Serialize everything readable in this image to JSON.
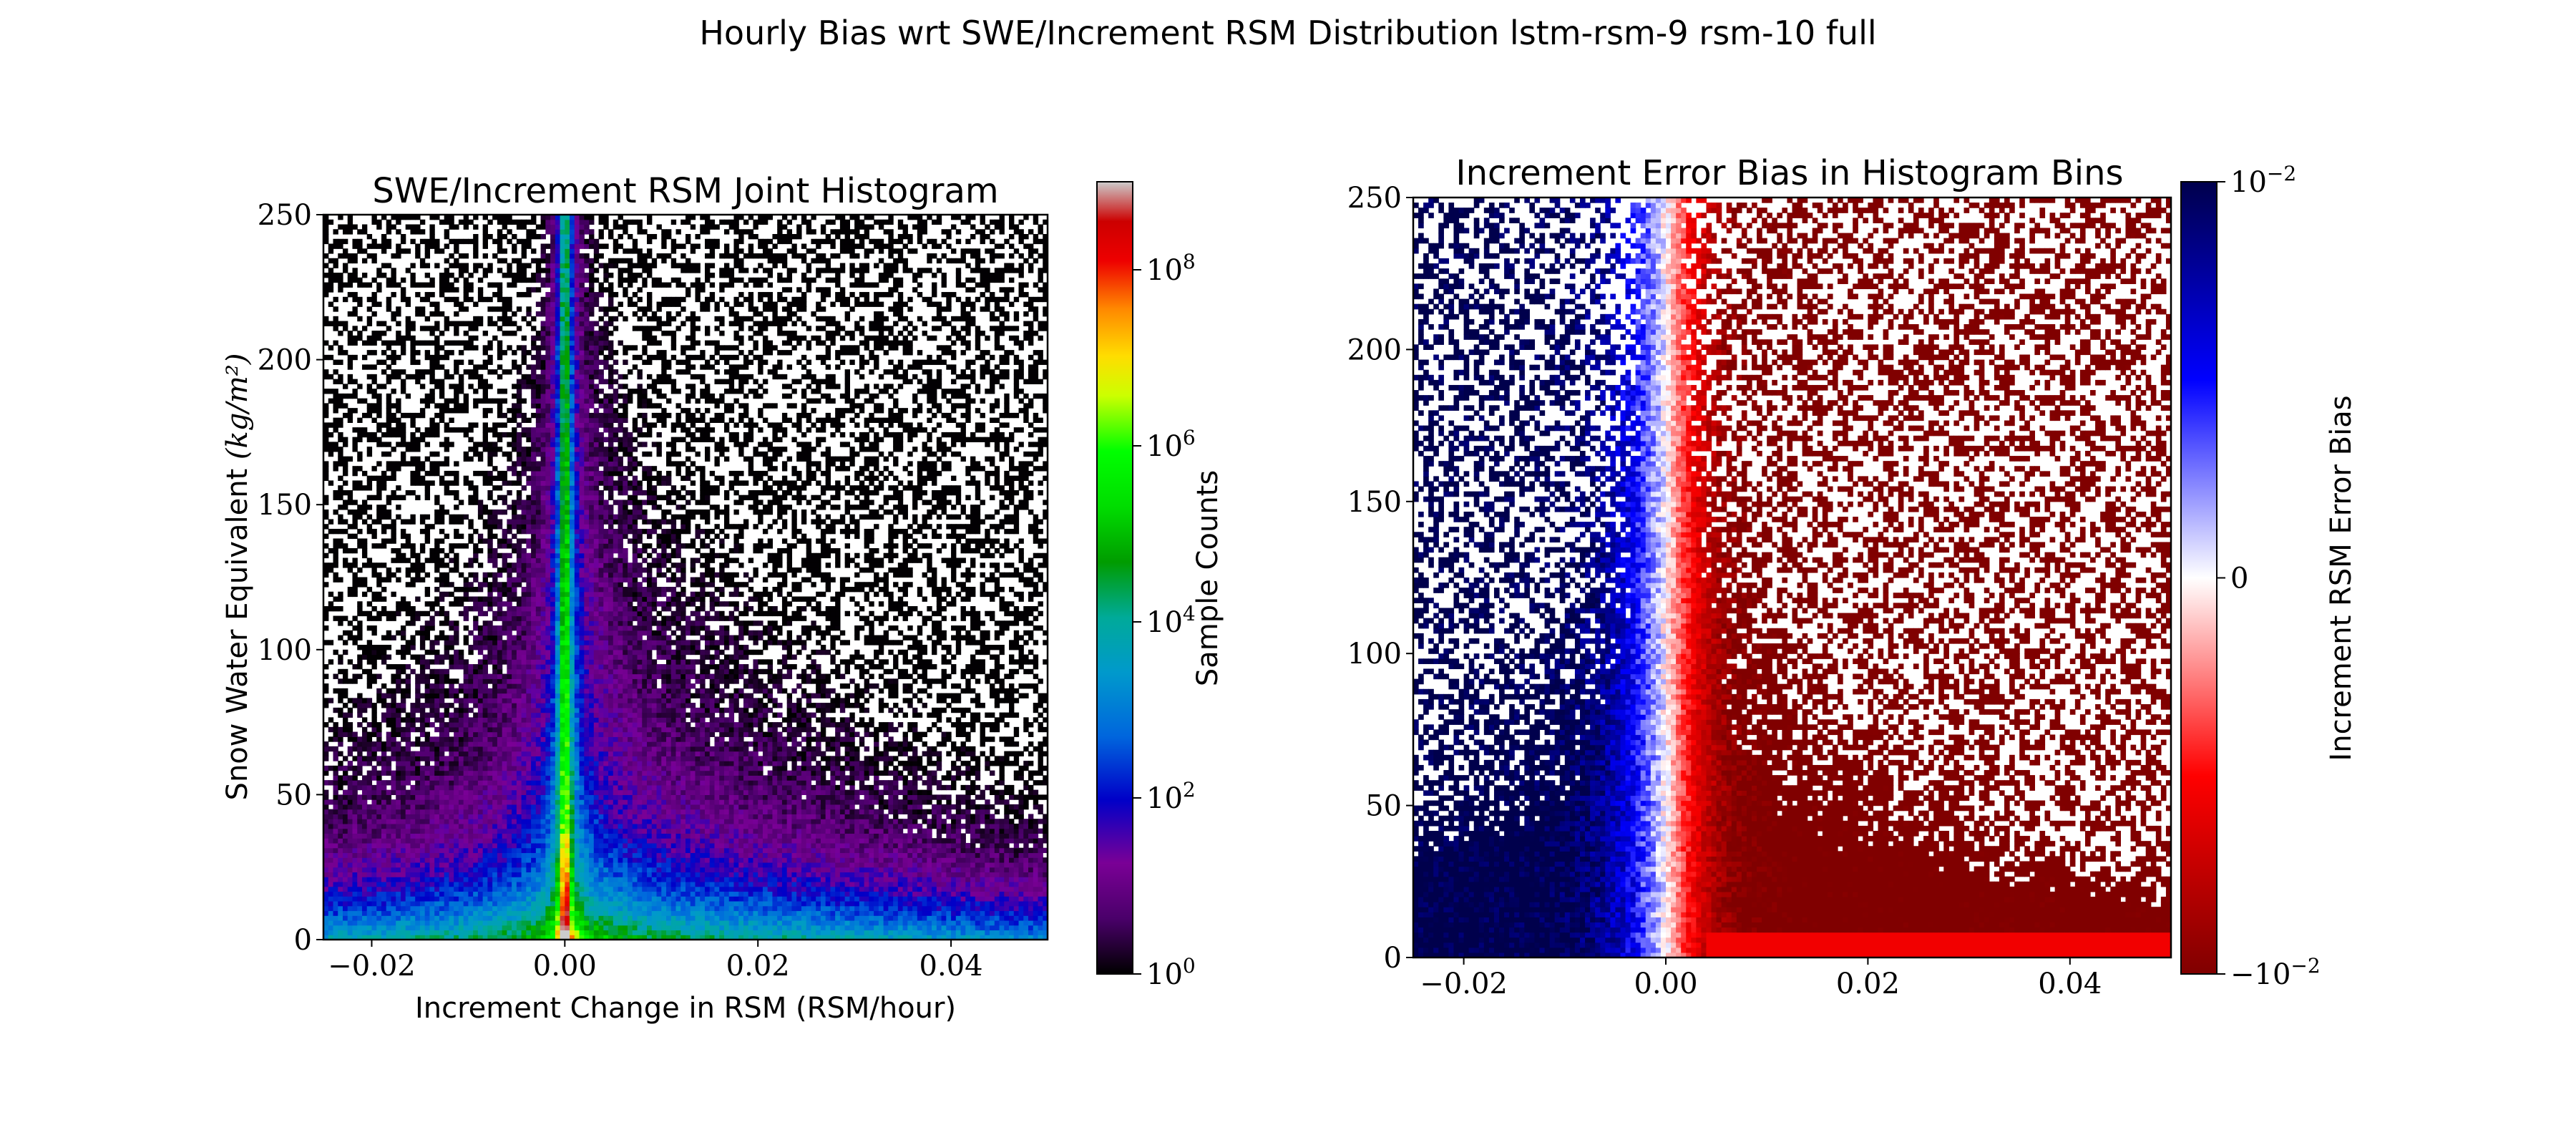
{
  "suptitle": "Hourly Bias wrt SWE/Increment RSM Distribution lstm-rsm-9 rsm-10 full",
  "chart_data": [
    {
      "type": "heatmap",
      "title": "SWE/Increment RSM Joint Histogram",
      "xlabel": "Increment Change in RSM (RSM/hour)",
      "ylabel_text": "Snow Water Equivalent",
      "ylabel_unit": "(kg/m²)",
      "xlim": [
        -0.025,
        0.05
      ],
      "ylim": [
        0,
        250
      ],
      "xticks": [
        -0.02,
        0.0,
        0.02,
        0.04
      ],
      "xtick_labels": [
        "−0.02",
        "0.00",
        "0.02",
        "0.04"
      ],
      "yticks": [
        0,
        50,
        100,
        150,
        200,
        250
      ],
      "ytick_labels": [
        "0",
        "50",
        "100",
        "150",
        "200",
        "250"
      ],
      "color_scale": "log",
      "colormap": "nipy_spectral",
      "colorbar": {
        "label": "Sample Counts",
        "range": [
          1,
          1000000000
        ],
        "ticks": [
          1,
          100,
          10000,
          1000000,
          100000000
        ],
        "tick_labels": [
          "10",
          "10",
          "10",
          "10",
          "10"
        ],
        "tick_exponents": [
          "0",
          "2",
          "4",
          "6",
          "8"
        ]
      },
      "description_of_density": "Counts peak (~1e6-1e7) at increment 0 for all SWE; high counts (~1e3-1e4) near SWE 0-20; decays to ~1e0-1e1 toward large |increment| and high SWE"
    },
    {
      "type": "heatmap",
      "title": "Increment Error Bias in Histogram Bins",
      "xlabel": "",
      "ylabel": "",
      "xlim": [
        -0.025,
        0.05
      ],
      "ylim": [
        0,
        250
      ],
      "xticks": [
        -0.02,
        0.0,
        0.02,
        0.04
      ],
      "xtick_labels": [
        "−0.02",
        "0.00",
        "0.02",
        "0.04"
      ],
      "yticks": [
        0,
        50,
        100,
        150,
        200,
        250
      ],
      "ytick_labels": [
        "0",
        "50",
        "100",
        "150",
        "200",
        "250"
      ],
      "colormap": "seismic_r",
      "colorbar": {
        "label": "Increment RSM Error Bias",
        "range": [
          -0.01,
          0.01
        ],
        "tick_labels": [
          "10",
          "0",
          "−10"
        ],
        "tick_exponents": [
          "−2",
          "",
          "−2"
        ],
        "colors": {
          "top": "#00004c",
          "mid": "#ffffff",
          "bottom": "#800000"
        }
      },
      "description_of_bias": "Positive bias (blue) for negative increments, near zero at increment 0, negative bias (red) saturating at -1e-2 for positive increments"
    }
  ]
}
